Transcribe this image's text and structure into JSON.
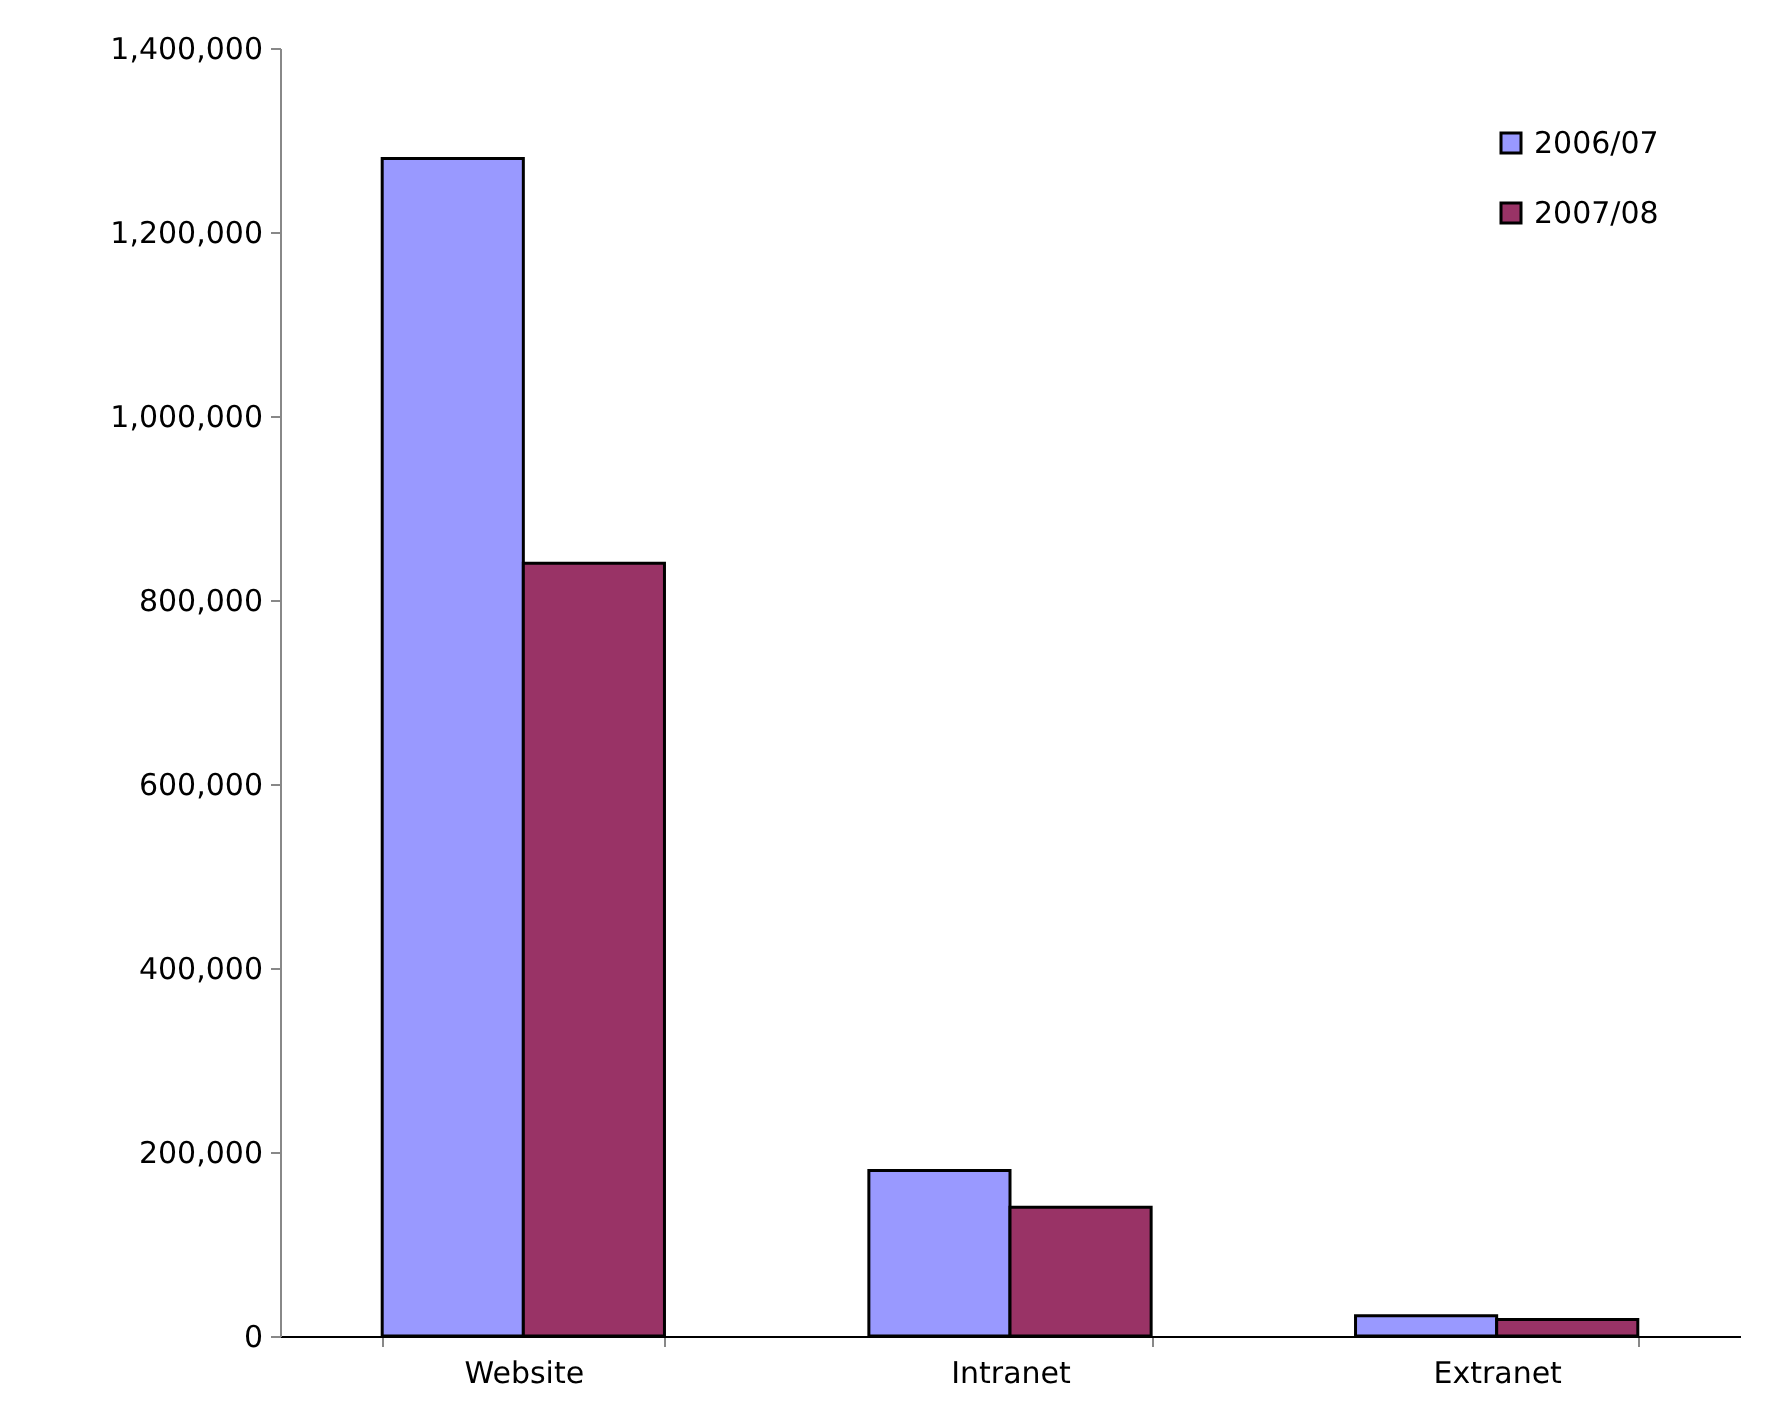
{
  "chart_data": {
    "type": "bar",
    "categories": [
      "Website",
      "Intranet",
      "Extranet"
    ],
    "series": [
      {
        "name": "2006/07",
        "color": "#9999ff",
        "values": [
          1280000,
          180000,
          22000
        ]
      },
      {
        "name": "2007/08",
        "color": "#993366",
        "values": [
          840000,
          140000,
          18000
        ]
      }
    ],
    "ylim": [
      0,
      1400000
    ],
    "yticks": [
      0,
      {
        "value": 200000,
        "label": "200,000"
      },
      {
        "value": 400000,
        "label": "400,000"
      },
      {
        "value": 600000,
        "label": "600,000"
      },
      {
        "value": 800000,
        "label": "800,000"
      },
      {
        "value": 1000000,
        "label": "1,000,000"
      },
      {
        "value": 1200000,
        "label": "1,200,000"
      },
      {
        "value": 1400000,
        "label": "1,400,000"
      }
    ],
    "grid": false,
    "legend": "top right"
  }
}
